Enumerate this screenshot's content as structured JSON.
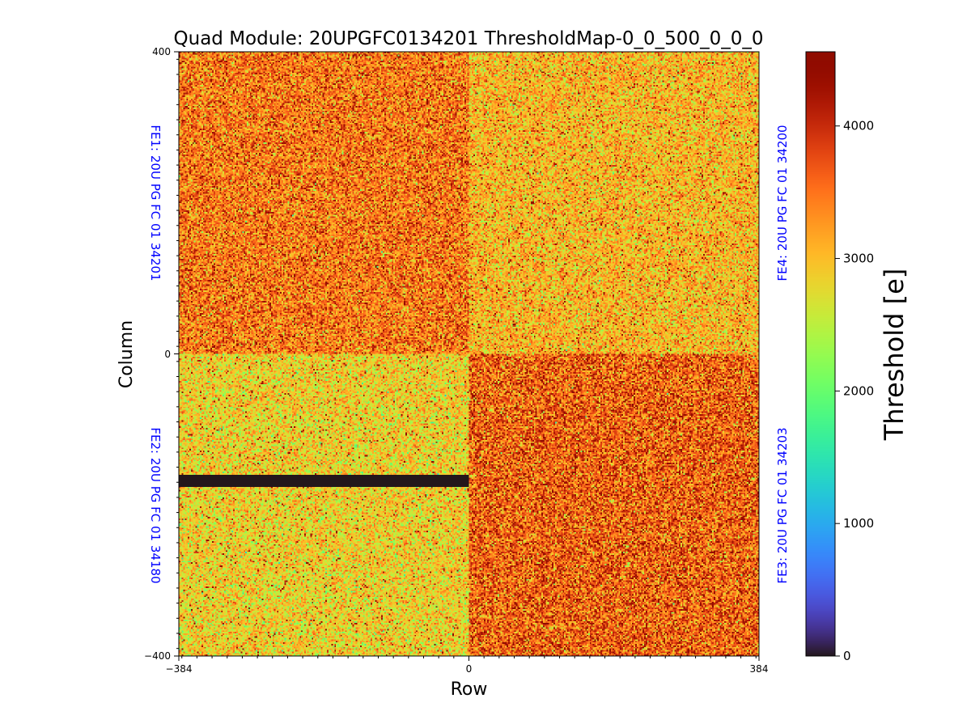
{
  "chart_data": {
    "type": "heatmap",
    "title": "Quad Module: 20UPGFC0134201 ThresholdMap-0_0_500_0_0_0",
    "xlabel": "Row",
    "ylabel": "Column",
    "xlim": [
      -384,
      384
    ],
    "ylim": [
      -400,
      400
    ],
    "x_ticks": [
      -384,
      0,
      384
    ],
    "y_ticks": [
      400,
      0,
      -400
    ],
    "x_tick_labels": [
      "−384",
      "0",
      "384"
    ],
    "y_tick_labels": [
      "400",
      "0",
      "−400"
    ],
    "colorbar": {
      "label": "Threshold [e]",
      "range": [
        0,
        4560
      ],
      "colormap": "turbo",
      "ticks": [
        0,
        1000,
        2000,
        3000,
        4000
      ],
      "tick_labels": [
        "0",
        "1000",
        "2000",
        "3000",
        "4000"
      ]
    },
    "quadrants": [
      {
        "name": "FE1",
        "label": "FE1: 20U PG FC 01 34201",
        "x_range": [
          -384,
          0
        ],
        "y_range": [
          0,
          400
        ],
        "mean_threshold": 3450,
        "spread": 450
      },
      {
        "name": "FE4",
        "label": "FE4: 20U PG FC 01 34200",
        "x_range": [
          0,
          384
        ],
        "y_range": [
          0,
          400
        ],
        "mean_threshold": 3050,
        "spread": 420
      },
      {
        "name": "FE2",
        "label": "FE2: 20U PG FC 01 34180",
        "x_range": [
          -384,
          0
        ],
        "y_range": [
          -400,
          0
        ],
        "mean_threshold": 2850,
        "spread": 420
      },
      {
        "name": "FE3",
        "label": "FE3: 20U PG FC 01 34203",
        "x_range": [
          0,
          384
        ],
        "y_range": [
          -400,
          0
        ],
        "mean_threshold": 3600,
        "spread": 500
      }
    ],
    "masked_band": {
      "x_range": [
        -384,
        0
      ],
      "y_range": [
        -175,
        -160
      ],
      "value": 0
    },
    "label_color": "#0000ff"
  }
}
